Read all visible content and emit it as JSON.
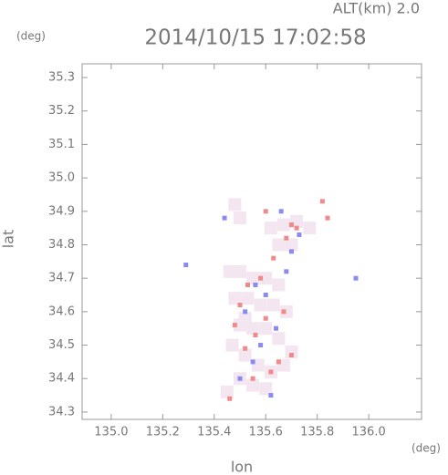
{
  "chart_data": {
    "type": "scatter",
    "title": "2014/10/15 17:02:58",
    "subtitle": "ALT(km) 2.0",
    "y_unit": "(deg)",
    "x_unit": "(deg)",
    "x_label": "lon",
    "y_label": "lat",
    "xlim": [
      134.887,
      136.205
    ],
    "ylim": [
      34.278,
      35.341
    ],
    "xticks": [
      {
        "value": 135,
        "label": "135.0"
      },
      135.2,
      135.4,
      135.6,
      135.8,
      {
        "value": 136,
        "label": "136.0"
      }
    ],
    "yticks": [
      34.3,
      34.4,
      34.5,
      34.6,
      34.7,
      34.8,
      34.9,
      {
        "value": 35,
        "label": "35.0"
      },
      35.1,
      35.2,
      35.3
    ],
    "series": [
      {
        "name": "pale",
        "color": "#f3e6f0",
        "size": 14,
        "x": [
          135.46,
          135.5,
          135.55,
          135.6,
          135.65,
          135.48,
          135.53,
          135.58,
          135.63,
          135.68,
          135.5,
          135.55,
          135.6,
          135.65,
          135.7,
          135.52,
          135.57,
          135.62,
          135.67,
          135.5,
          135.55,
          135.6,
          135.45,
          135.62,
          135.67,
          135.72,
          135.77,
          135.65,
          135.7,
          135.48,
          135.5,
          135.47,
          135.52
        ],
        "y": [
          34.72,
          34.72,
          34.7,
          34.7,
          34.68,
          34.64,
          34.64,
          34.62,
          34.62,
          34.6,
          34.56,
          34.55,
          34.55,
          34.52,
          34.48,
          34.47,
          34.44,
          34.42,
          34.44,
          34.4,
          34.38,
          34.37,
          34.36,
          34.85,
          34.86,
          34.87,
          34.85,
          34.8,
          34.8,
          34.92,
          34.88,
          34.5,
          34.58
        ]
      },
      {
        "name": "red",
        "color": "#f08a8a",
        "size": 5,
        "x": [
          135.46,
          135.55,
          135.62,
          135.7,
          135.82,
          135.84,
          135.5,
          135.6,
          135.56,
          135.65,
          135.58,
          135.52,
          135.68,
          135.6,
          135.48,
          135.7,
          135.63,
          135.53,
          135.67,
          135.72
        ],
        "y": [
          34.34,
          34.4,
          34.42,
          34.47,
          34.93,
          34.88,
          34.62,
          34.58,
          34.53,
          34.45,
          34.7,
          34.49,
          34.82,
          34.9,
          34.56,
          34.86,
          34.76,
          34.68,
          34.6,
          34.85
        ]
      },
      {
        "name": "blue",
        "color": "#8a8af0",
        "size": 5,
        "x": [
          135.95,
          135.29,
          135.6,
          135.52,
          135.66,
          135.58,
          135.7,
          135.5,
          135.62,
          135.64,
          135.56,
          135.73,
          135.44,
          135.55,
          135.68
        ],
        "y": [
          34.7,
          34.74,
          34.65,
          34.6,
          34.9,
          34.5,
          34.78,
          34.4,
          34.35,
          34.55,
          34.68,
          34.83,
          34.88,
          34.45,
          34.72
        ]
      }
    ]
  }
}
